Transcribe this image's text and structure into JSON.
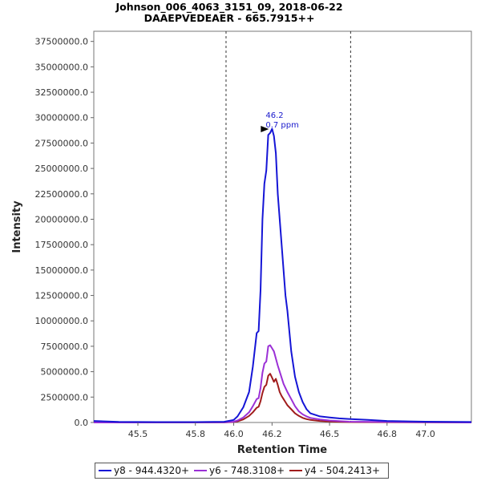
{
  "chart_data": {
    "type": "line",
    "title": "Johnson_006_4063_3151_09, 2018-06-22",
    "subtitle": "DAAEPVEDEAER - 665.7915++",
    "xlabel": "Retention Time",
    "ylabel": "Intensity",
    "xlim": [
      45.27,
      47.24
    ],
    "ylim": [
      0,
      38500000
    ],
    "x_ticks": [
      "45.5",
      "45.8",
      "46.0",
      "46.2",
      "46.5",
      "46.8",
      "47.0"
    ],
    "y_ticks": [
      "0.0",
      "2500000.0",
      "5000000.0",
      "7500000.0",
      "10000000.0",
      "12500000.0",
      "15000000.0",
      "17500000.0",
      "20000000.0",
      "22500000.0",
      "25000000.0",
      "27500000.0",
      "30000000.0",
      "32500000.0",
      "35000000.0",
      "37500000.0"
    ],
    "y_tick_values": [
      0,
      2500000,
      5000000,
      7500000,
      10000000,
      12500000,
      15000000,
      17500000,
      20000000,
      22500000,
      25000000,
      27500000,
      30000000,
      32500000,
      35000000,
      37500000
    ],
    "vlines": [
      45.96,
      46.61
    ],
    "peak_annotation": {
      "x": 46.2,
      "y": 28800000,
      "line1": "46.2",
      "line2": "0.7 ppm",
      "color": "#1a1acc"
    },
    "grid": false,
    "legend_position": "bottom",
    "series": [
      {
        "name": "y8 - 944.4320+",
        "color": "#1515d6",
        "x": [
          45.27,
          45.4,
          45.6,
          45.8,
          45.95,
          46.0,
          46.02,
          46.05,
          46.08,
          46.1,
          46.12,
          46.13,
          46.14,
          46.15,
          46.16,
          46.17,
          46.18,
          46.19,
          46.2,
          46.21,
          46.22,
          46.23,
          46.24,
          46.25,
          46.26,
          46.27,
          46.28,
          46.29,
          46.3,
          46.32,
          46.34,
          46.36,
          46.38,
          46.4,
          46.45,
          46.5,
          46.55,
          46.6,
          46.7,
          46.8,
          47.0,
          47.24
        ],
        "y": [
          150000,
          60000,
          40000,
          40000,
          70000,
          250000,
          600000,
          1500000,
          3000000,
          5500000,
          8800000,
          9000000,
          13000000,
          20000000,
          23500000,
          24800000,
          28300000,
          28500000,
          28900000,
          28200000,
          26500000,
          22500000,
          20000000,
          17500000,
          15000000,
          12500000,
          11000000,
          9000000,
          7000000,
          4500000,
          3000000,
          2000000,
          1300000,
          900000,
          600000,
          500000,
          400000,
          350000,
          250000,
          150000,
          80000,
          50000
        ]
      },
      {
        "name": "y6 - 748.3108+",
        "color": "#9b30d6",
        "x": [
          45.27,
          45.95,
          46.0,
          46.02,
          46.05,
          46.08,
          46.1,
          46.12,
          46.13,
          46.14,
          46.15,
          46.16,
          46.17,
          46.18,
          46.19,
          46.2,
          46.21,
          46.22,
          46.23,
          46.24,
          46.25,
          46.26,
          46.27,
          46.28,
          46.3,
          46.32,
          46.34,
          46.36,
          46.38,
          46.4,
          46.45,
          46.5,
          46.6,
          47.24
        ],
        "y": [
          0,
          20000,
          80000,
          200000,
          500000,
          1000000,
          1600000,
          2300000,
          2400000,
          3400000,
          4900000,
          5800000,
          6000000,
          7500000,
          7600000,
          7300000,
          7000000,
          6300000,
          5600000,
          5000000,
          4400000,
          3800000,
          3400000,
          3000000,
          2300000,
          1600000,
          1100000,
          800000,
          600000,
          450000,
          300000,
          200000,
          80000,
          0
        ]
      },
      {
        "name": "y4 - 504.2413+",
        "color": "#a01c1c",
        "x": [
          45.27,
          45.95,
          46.0,
          46.02,
          46.05,
          46.08,
          46.1,
          46.12,
          46.13,
          46.14,
          46.15,
          46.16,
          46.17,
          46.18,
          46.19,
          46.2,
          46.21,
          46.22,
          46.23,
          46.24,
          46.25,
          46.26,
          46.27,
          46.28,
          46.3,
          46.32,
          46.34,
          46.36,
          46.38,
          46.4,
          46.45,
          46.5,
          46.6,
          47.24
        ],
        "y": [
          0,
          10000,
          50000,
          120000,
          300000,
          650000,
          1000000,
          1450000,
          1550000,
          2100000,
          2900000,
          3500000,
          3700000,
          4600000,
          4800000,
          4400000,
          4000000,
          4300000,
          3700000,
          3000000,
          2600000,
          2300000,
          2000000,
          1700000,
          1300000,
          900000,
          650000,
          450000,
          330000,
          250000,
          150000,
          100000,
          40000,
          0
        ]
      }
    ]
  }
}
